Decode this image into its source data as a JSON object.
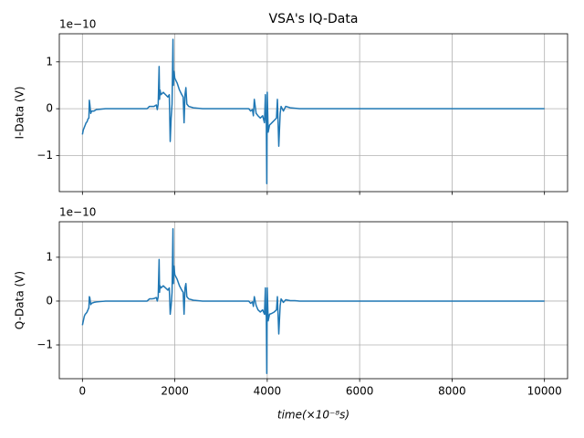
{
  "chart_data": [
    {
      "type": "line",
      "title": "VSA's IQ-Data",
      "ylabel": "I-Data (V)",
      "y_offset": "1e−10",
      "color": "#1f77b4",
      "grid": true,
      "sharex": true,
      "xlim": [
        -500,
        10500
      ],
      "xticks": [
        0,
        2000,
        4000,
        6000,
        8000,
        10000
      ],
      "ylim": [
        -1.77,
        1.6
      ],
      "yticks": [
        {
          "value": -1,
          "label": "−1"
        },
        0,
        1
      ],
      "x": [
        0,
        20,
        40,
        60,
        80,
        100,
        120,
        140,
        150,
        160,
        180,
        200,
        250,
        300,
        400,
        500,
        1000,
        1400,
        1450,
        1500,
        1550,
        1600,
        1620,
        1640,
        1660,
        1670,
        1680,
        1700,
        1750,
        1800,
        1850,
        1880,
        1900,
        1920,
        1940,
        1960,
        1970,
        1980,
        2000,
        2050,
        2100,
        2150,
        2180,
        2200,
        2220,
        2240,
        2260,
        2300,
        2400,
        2500,
        2600,
        3000,
        3600,
        3640,
        3680,
        3700,
        3720,
        3760,
        3800,
        3850,
        3900,
        3940,
        3960,
        3970,
        3980,
        3990,
        4000,
        4020,
        4050,
        4100,
        4150,
        4200,
        4220,
        4250,
        4280,
        4300,
        4350,
        4400,
        4500,
        4600,
        4700,
        5000,
        10000
      ],
      "values": [
        -0.55,
        -0.45,
        -0.4,
        -0.35,
        -0.3,
        -0.28,
        -0.22,
        -0.2,
        0.18,
        0.1,
        -0.1,
        -0.05,
        -0.05,
        -0.02,
        -0.01,
        0,
        0,
        0,
        0.05,
        0.05,
        0.05,
        0.08,
        -0.02,
        0.1,
        0.9,
        0.2,
        0.4,
        0.3,
        0.35,
        0.3,
        0.25,
        0.3,
        -0.7,
        -0.2,
        0.1,
        1.48,
        0.5,
        0.8,
        0.65,
        0.55,
        0.4,
        0.3,
        0.25,
        -0.3,
        0.3,
        0.45,
        0.1,
        0.05,
        0.02,
        0.01,
        0,
        0,
        0,
        -0.05,
        -0.02,
        -0.15,
        0.2,
        -0.1,
        -0.15,
        -0.2,
        -0.15,
        -0.3,
        0.3,
        -0.2,
        -0.3,
        -1.6,
        0.35,
        -0.5,
        -0.35,
        -0.3,
        -0.25,
        -0.2,
        0.2,
        -0.8,
        -0.1,
        0.05,
        -0.05,
        0.05,
        0.02,
        0.01,
        0,
        0,
        0
      ]
    },
    {
      "type": "line",
      "ylabel": "Q-Data (V)",
      "xlabel": "time(×10⁻⁸s)",
      "y_offset": "1e−10",
      "color": "#1f77b4",
      "grid": true,
      "xlim": [
        -500,
        10500
      ],
      "xticks": [
        0,
        2000,
        4000,
        6000,
        8000,
        10000
      ],
      "ylim": [
        -1.77,
        1.81
      ],
      "yticks": [
        {
          "value": -1,
          "label": "−1"
        },
        0,
        1
      ],
      "x": [
        0,
        20,
        40,
        60,
        80,
        100,
        120,
        140,
        150,
        160,
        180,
        200,
        250,
        300,
        400,
        500,
        1000,
        1400,
        1450,
        1500,
        1550,
        1600,
        1620,
        1640,
        1660,
        1670,
        1680,
        1700,
        1750,
        1800,
        1850,
        1880,
        1900,
        1920,
        1940,
        1960,
        1970,
        1980,
        2000,
        2050,
        2100,
        2150,
        2180,
        2200,
        2220,
        2240,
        2260,
        2300,
        2400,
        2500,
        2600,
        3000,
        3600,
        3640,
        3680,
        3700,
        3720,
        3760,
        3800,
        3850,
        3900,
        3940,
        3960,
        3970,
        3980,
        3990,
        4000,
        4020,
        4050,
        4100,
        4150,
        4200,
        4220,
        4250,
        4280,
        4300,
        4350,
        4400,
        4500,
        4600,
        4700,
        5000,
        10000
      ],
      "values": [
        -0.55,
        -0.45,
        -0.35,
        -0.3,
        -0.28,
        -0.25,
        -0.2,
        -0.15,
        0.1,
        0.08,
        -0.08,
        -0.05,
        -0.03,
        -0.02,
        -0.01,
        0,
        0,
        0,
        0.05,
        0.05,
        0.06,
        0.08,
        0,
        0.1,
        0.95,
        0.2,
        0.35,
        0.3,
        0.35,
        0.3,
        0.25,
        0.3,
        -0.3,
        -0.1,
        0.2,
        1.65,
        0.4,
        0.8,
        0.6,
        0.5,
        0.35,
        0.25,
        0.2,
        -0.3,
        0.3,
        0.4,
        0.1,
        0.05,
        0.02,
        0.01,
        0,
        0,
        0,
        -0.05,
        -0.02,
        -0.12,
        0.1,
        -0.1,
        -0.2,
        -0.25,
        -0.2,
        -0.3,
        0.3,
        -0.3,
        -0.35,
        -1.65,
        0.3,
        -0.45,
        -0.3,
        -0.28,
        -0.25,
        -0.2,
        0.1,
        -0.75,
        -0.1,
        0.05,
        -0.03,
        0.03,
        0.01,
        0.01,
        0,
        0,
        0
      ]
    }
  ]
}
